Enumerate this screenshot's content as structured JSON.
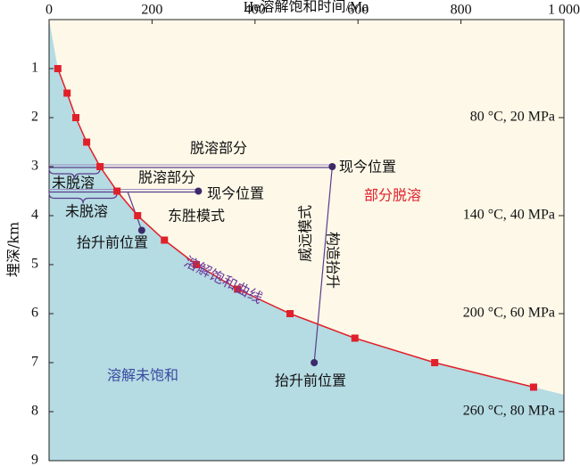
{
  "chart_data": {
    "type": "line",
    "title": "He溶解饱和时间/Ma",
    "ylabel": "埋深/km",
    "xlim": [
      0,
      1000
    ],
    "xticks": [
      0,
      200,
      400,
      600,
      800,
      {
        "value": 1000,
        "label": "1 000"
      }
    ],
    "ylim": [
      0,
      9
    ],
    "yticks": [
      1,
      2,
      3,
      4,
      5,
      6,
      7,
      8,
      9
    ],
    "y2lim": [
      0,
      9
    ],
    "y2ticks": [
      {
        "value": 2,
        "label": "80 °C, 20 MPa"
      },
      {
        "value": 4,
        "label": "140 °C, 40 MPa"
      },
      {
        "value": 6,
        "label": "200 °C, 60 MPa"
      },
      {
        "value": 8,
        "label": "260 °C, 80 MPa"
      }
    ],
    "series": [
      {
        "name": "溶解饱和曲线",
        "color": "#e0202a",
        "x": [
          17,
          35,
          52,
          73,
          99,
          132,
          172,
          224,
          286,
          366,
          468,
          594,
          749,
          941
        ],
        "values": [
          1,
          1.5,
          2,
          2.5,
          3,
          3.5,
          4,
          4.5,
          5,
          5.5,
          6,
          6.5,
          7,
          7.5
        ]
      }
    ],
    "markers": [
      {
        "x": 550,
        "y": 3
      },
      {
        "x": 515,
        "y": 7
      },
      {
        "x": 290,
        "y": 3.5
      },
      {
        "x": 180,
        "y": 4.3
      }
    ],
    "annotations": [
      "脱溶部分",
      "未脱溶",
      "脱溶部分",
      "未脱溶",
      "现今位置",
      "现今位置",
      "东胜模式",
      "抬升前位置",
      "威远模式",
      "构造抬升",
      "部分脱溶",
      "溶解未饱和",
      "抬升前位置"
    ]
  }
}
